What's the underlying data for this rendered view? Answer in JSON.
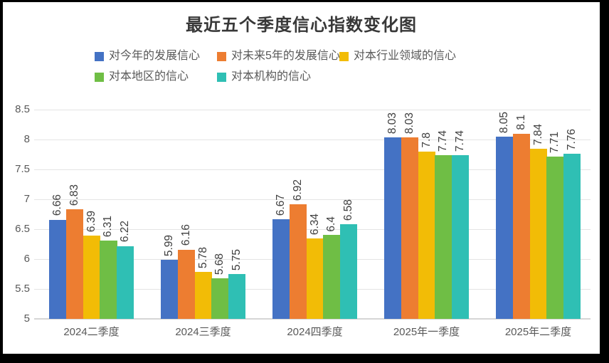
{
  "title": "最近五个季度信心指数变化图",
  "chart_data": {
    "type": "bar",
    "title": "最近五个季度信心指数变化图",
    "categories": [
      "2024二季度",
      "2024三季度",
      "2024四季度",
      "2025年一季度",
      "2025年二季度"
    ],
    "series": [
      {
        "name": "对今年的发展信心",
        "color": "#4472C4",
        "values": [
          6.66,
          5.99,
          6.67,
          8.03,
          8.05
        ]
      },
      {
        "name": "对未来5年的发展信心",
        "color": "#ED7D31",
        "values": [
          6.83,
          6.16,
          6.92,
          8.03,
          8.1
        ]
      },
      {
        "name": "对本行业领域的信心",
        "color": "#F2BC06",
        "values": [
          6.39,
          5.78,
          6.34,
          7.8,
          7.84
        ]
      },
      {
        "name": "对本地区的信心",
        "color": "#6FBE45",
        "values": [
          6.31,
          5.68,
          6.4,
          7.74,
          7.71
        ]
      },
      {
        "name": "对本机构的信心",
        "color": "#2FBFB4",
        "values": [
          6.22,
          5.75,
          6.58,
          7.74,
          7.76
        ]
      }
    ],
    "ylim": [
      5,
      8.5
    ],
    "yticks": [
      "8.5",
      "8",
      "7.5",
      "7",
      "6.5",
      "6",
      "5.5",
      "5"
    ],
    "grid": true,
    "legend_position": "top-left-two-rows",
    "data_labels": "rotated-vertical",
    "frame_color": "#000000",
    "background_color": "#ffffff",
    "text_colors": {
      "title": "#383838",
      "axis": "#595959",
      "data_label": "#3f3f3f"
    }
  }
}
